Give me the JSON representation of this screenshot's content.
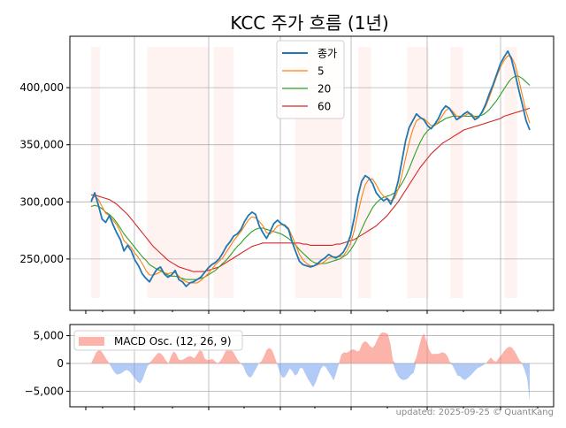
{
  "chart_data": [
    {
      "type": "line",
      "title": "KCC 주가 흐름 (1년)",
      "xlabel": "",
      "ylabel": "",
      "ylim": [
        205000,
        445000
      ],
      "yticks": [
        250000,
        300000,
        350000,
        400000
      ],
      "ytick_labels": [
        "250,000",
        "300,000",
        "350,000",
        "400,000"
      ],
      "x_range": [
        0,
        243
      ],
      "grid": true,
      "legend_position": "top-center",
      "shaded_periods": [
        [
          0,
          5
        ],
        [
          31,
          65
        ],
        [
          68,
          79
        ],
        [
          113,
          139
        ],
        [
          148,
          155
        ],
        [
          175,
          187
        ],
        [
          199,
          206
        ],
        [
          229,
          236
        ]
      ],
      "series": [
        {
          "name": "종가",
          "color": "#1f77b4",
          "values": [
            300000,
            308000,
            297000,
            285000,
            282000,
            288000,
            280000,
            273000,
            267000,
            257000,
            262000,
            257000,
            249000,
            244000,
            237000,
            233000,
            230000,
            236000,
            241000,
            243000,
            237000,
            234000,
            236000,
            240000,
            232000,
            230000,
            226000,
            229000,
            230000,
            232000,
            234000,
            238000,
            242000,
            245000,
            247000,
            250000,
            255000,
            261000,
            265000,
            270000,
            272000,
            276000,
            283000,
            288000,
            291000,
            289000,
            279000,
            273000,
            268000,
            274000,
            281000,
            284000,
            281000,
            279000,
            276000,
            265000,
            256000,
            248000,
            245000,
            244000,
            243000,
            244000,
            246000,
            249000,
            251000,
            254000,
            252000,
            251000,
            253000,
            256000,
            262000,
            271000,
            286000,
            305000,
            318000,
            323000,
            321000,
            316000,
            308000,
            304000,
            301000,
            303000,
            298000,
            306000,
            318000,
            335000,
            353000,
            365000,
            371000,
            377000,
            374000,
            372000,
            367000,
            364000,
            368000,
            373000,
            380000,
            384000,
            382000,
            377000,
            372000,
            374000,
            377000,
            379000,
            376000,
            372000,
            374000,
            379000,
            386000,
            395000,
            403000,
            412000,
            421000,
            427000,
            432000,
            425000,
            412000,
            398000,
            385000,
            371000,
            363000
          ]
        },
        {
          "name": "5",
          "color": "#ff7f0e",
          "values": [
            302000,
            305000,
            302000,
            296000,
            290000,
            288000,
            284000,
            280000,
            274000,
            266000,
            263000,
            260000,
            255000,
            251000,
            246000,
            240000,
            236000,
            236000,
            237000,
            239000,
            238000,
            237000,
            238000,
            238000,
            235000,
            232000,
            230000,
            229000,
            229000,
            229000,
            231000,
            234000,
            237000,
            241000,
            245000,
            248000,
            251000,
            256000,
            261000,
            266000,
            270000,
            274000,
            279000,
            284000,
            287000,
            286000,
            283000,
            279000,
            273000,
            272000,
            275000,
            279000,
            280000,
            280000,
            277000,
            270000,
            262000,
            254000,
            249000,
            246000,
            244000,
            244000,
            245000,
            246000,
            248000,
            251000,
            252000,
            252000,
            252000,
            253000,
            257000,
            264000,
            275000,
            290000,
            304000,
            315000,
            320000,
            320000,
            315000,
            309000,
            305000,
            303000,
            301000,
            303000,
            311000,
            323000,
            338000,
            352000,
            363000,
            371000,
            373000,
            373000,
            370000,
            367000,
            367000,
            370000,
            375000,
            380000,
            382000,
            379000,
            375000,
            374000,
            375000,
            377000,
            377000,
            374000,
            374000,
            378000,
            384000,
            392000,
            401000,
            410000,
            418000,
            424000,
            428000,
            427000,
            420000,
            407000,
            393000,
            379000,
            369000
          ]
        },
        {
          "name": "20",
          "color": "#2ca02c",
          "values": [
            296000,
            297000,
            296000,
            294000,
            291000,
            289000,
            286000,
            282000,
            277000,
            272000,
            268000,
            264000,
            260000,
            256000,
            252000,
            249000,
            245000,
            243000,
            241000,
            240000,
            238000,
            236000,
            235000,
            235000,
            234000,
            233000,
            232000,
            232000,
            232000,
            232000,
            233000,
            234000,
            236000,
            238000,
            240000,
            243000,
            246000,
            249000,
            253000,
            257000,
            261000,
            264000,
            268000,
            271000,
            274000,
            276000,
            277000,
            277000,
            276000,
            275000,
            274000,
            273000,
            272000,
            270000,
            268000,
            265000,
            262000,
            258000,
            255000,
            252000,
            249000,
            247000,
            246000,
            246000,
            246000,
            247000,
            248000,
            249000,
            250000,
            252000,
            254000,
            258000,
            263000,
            269000,
            276000,
            283000,
            289000,
            295000,
            299000,
            302000,
            304000,
            305000,
            306000,
            308000,
            311000,
            316000,
            322000,
            329000,
            337000,
            345000,
            352000,
            358000,
            362000,
            365000,
            367000,
            369000,
            371000,
            373000,
            374000,
            375000,
            375000,
            375000,
            375000,
            375000,
            375000,
            375000,
            375000,
            376000,
            378000,
            381000,
            385000,
            389000,
            394000,
            399000,
            404000,
            408000,
            410000,
            410000,
            408000,
            405000,
            402000
          ]
        },
        {
          "name": "60",
          "color": "#d62728",
          "values": [
            306000,
            306000,
            305000,
            304000,
            303000,
            302000,
            300000,
            298000,
            295000,
            292000,
            289000,
            285000,
            281000,
            277000,
            273000,
            269000,
            265000,
            261000,
            258000,
            255000,
            252000,
            249000,
            247000,
            245000,
            243000,
            242000,
            241000,
            240000,
            239000,
            239000,
            239000,
            239000,
            240000,
            241000,
            242000,
            243000,
            245000,
            247000,
            249000,
            251000,
            253000,
            255000,
            257000,
            259000,
            261000,
            262000,
            263000,
            264000,
            264000,
            264000,
            264000,
            264000,
            264000,
            264000,
            264000,
            264000,
            264000,
            264000,
            263000,
            263000,
            262000,
            262000,
            262000,
            262000,
            262000,
            262000,
            262000,
            263000,
            263000,
            264000,
            265000,
            266000,
            267000,
            269000,
            271000,
            273000,
            275000,
            277000,
            279000,
            282000,
            285000,
            288000,
            292000,
            296000,
            300000,
            305000,
            310000,
            315000,
            320000,
            325000,
            330000,
            334000,
            338000,
            342000,
            345000,
            348000,
            351000,
            353000,
            355000,
            357000,
            359000,
            361000,
            363000,
            364000,
            365000,
            366000,
            367000,
            368000,
            369000,
            370000,
            371000,
            372000,
            373000,
            375000,
            376000,
            377000,
            378000,
            379000,
            380000,
            381000,
            382000
          ]
        }
      ]
    },
    {
      "type": "area",
      "title": "",
      "xlabel": "",
      "ylabel": "",
      "ylim": [
        -7800,
        7000
      ],
      "yticks": [
        -5000,
        0,
        5000
      ],
      "ytick_labels": [
        "−5,000",
        "0",
        "5,000"
      ],
      "x_range": [
        0,
        243
      ],
      "grid": true,
      "legend_position": "top-left",
      "positive_color": "#fa8072",
      "negative_color": "#6495ed",
      "series": [
        {
          "name": "MACD Osc. (12, 26, 9)",
          "values": [
            0,
            1000,
            2000,
            2400,
            2200,
            1500,
            700,
            100,
            -800,
            -1600,
            -2000,
            -1900,
            -1700,
            -1300,
            -1200,
            -1500,
            -2100,
            -2700,
            -3300,
            -3600,
            -2800,
            -1500,
            -400,
            300,
            800,
            1400,
            1900,
            1800,
            1300,
            500,
            0,
            1300,
            2200,
            1700,
            700,
            600,
            800,
            1100,
            1300,
            1200,
            900,
            1600,
            2300,
            2200,
            900,
            600,
            700,
            800,
            400,
            0,
            400,
            1100,
            2100,
            2600,
            2500,
            2100,
            1300,
            500,
            0,
            -500,
            -1700,
            -2400,
            -2500,
            -1700,
            -900,
            0,
            400,
            1300,
            2400,
            2800,
            2500,
            1400,
            0,
            -1400,
            -2500,
            -2500,
            -1800,
            -900,
            -1400,
            -2200,
            -1900,
            -800,
            -900,
            -1900,
            -2800,
            -3500,
            -4300,
            -3500,
            -2200,
            -1000,
            -400,
            -700,
            -1500,
            -2200,
            -3100,
            -1700,
            -100,
            1600,
            2000,
            1900,
            2200,
            2500,
            2500,
            2200,
            2300,
            3500,
            4000,
            3800,
            3200,
            2800,
            3300,
            4400,
            5300,
            5600,
            5500,
            5300,
            3600,
            500,
            -1400,
            -2300,
            -2800,
            -3000,
            -2900,
            -2600,
            -2000,
            -1700,
            1000,
            2800,
            4600,
            5400,
            4000,
            2500,
            1700,
            1700,
            1700,
            1800,
            2000,
            1900,
            1400,
            300,
            -300,
            -1200,
            -2200,
            -2300,
            -2800,
            -3000,
            -2600,
            -2200,
            -1700,
            -1200,
            -800,
            -600,
            -300,
            0,
            600,
            1100,
            500,
            300,
            1000,
            1500,
            2200,
            2700,
            3000,
            2900,
            2300,
            1500,
            600,
            100,
            -1200,
            -2700,
            -6800
          ]
        }
      ]
    }
  ],
  "footer": {
    "credit": "updated: 2025-09-25 © QuantKang"
  }
}
